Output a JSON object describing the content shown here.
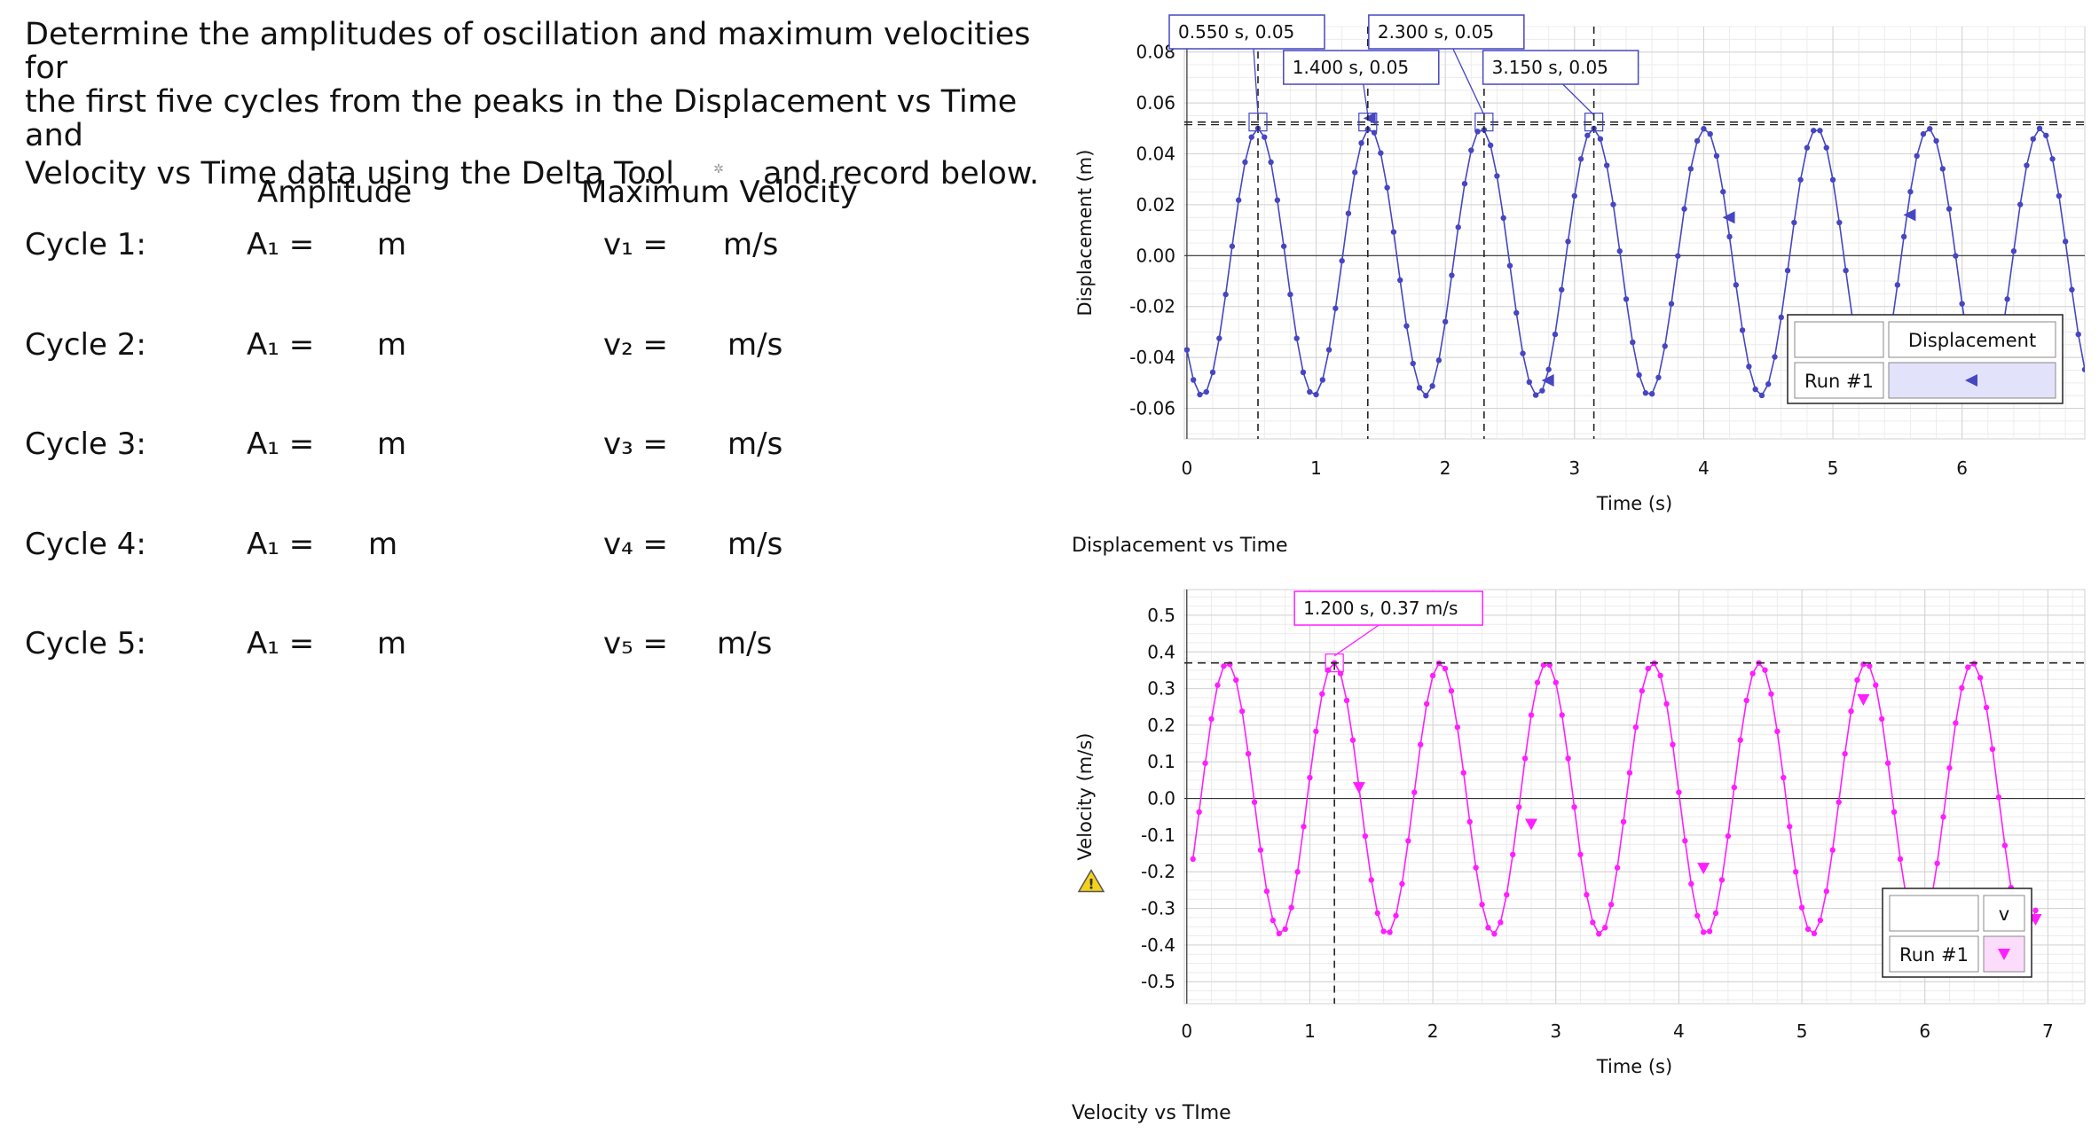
{
  "instructions": {
    "line1": "Determine the amplitudes of oscillation and maximum velocities for",
    "line2": "the first five cycles from the peaks in the Displacement vs Time and",
    "line3a": "Velocity vs Time data using the Delta Tool",
    "line3b": "and record below."
  },
  "table": {
    "amplitude_header": "Amplitude",
    "velocity_header": "Maximum Velocity",
    "rows": [
      {
        "cycle": "Cycle 1:",
        "amp_label": "A₁ =",
        "amp_unit": "m",
        "vel_label": "v₁ =",
        "vel_unit": "m/s"
      },
      {
        "cycle": "Cycle 2:",
        "amp_label": "A₁ =",
        "amp_unit": "m",
        "vel_label": "v₂ =",
        "vel_unit": "m/s"
      },
      {
        "cycle": "Cycle 3:",
        "amp_label": "A₁ =",
        "amp_unit": "m",
        "vel_label": "v₃ =",
        "vel_unit": "m/s"
      },
      {
        "cycle": "Cycle 4:",
        "amp_label": "A₁ =",
        "amp_unit": "m",
        "vel_label": "v₄ =",
        "vel_unit": "m/s"
      },
      {
        "cycle": "Cycle 5:",
        "amp_label": "A₁ =",
        "amp_unit": "m",
        "vel_label": "v₅ =",
        "vel_unit": "m/s"
      }
    ]
  },
  "chart_data": [
    {
      "type": "line",
      "caption": "Displacement vs Time",
      "xlabel": "Time (s)",
      "ylabel": "Displacement (m)",
      "xlim": [
        -0.02,
        6.95
      ],
      "ylim": [
        -0.072,
        0.09
      ],
      "xticks": [
        0,
        1,
        2,
        3,
        4,
        5,
        6
      ],
      "yticks": [
        -0.06,
        -0.04,
        -0.02,
        0.0,
        0.02,
        0.04,
        0.06,
        0.08
      ],
      "ytick_decimals": 2,
      "grid": true,
      "color": "#4646c2",
      "series": [
        {
          "name": "Displacement",
          "run": "Run #1",
          "amplitude": 0.0525,
          "period": 0.865,
          "phase_peak": 0.55,
          "offset": -0.0025,
          "dt": 0.05,
          "t_start": 0.0,
          "t_end": 6.95
        }
      ],
      "cursor_hline": 0.0525,
      "annotations": [
        {
          "label": "0.550 s, 0.05",
          "x": 0.55,
          "y": 0.0525
        },
        {
          "label": "1.400 s, 0.05",
          "x": 1.4,
          "y": 0.0525
        },
        {
          "label": "2.300 s, 0.05",
          "x": 2.3,
          "y": 0.0525
        },
        {
          "label": "3.150 s, 0.05",
          "x": 3.15,
          "y": 0.0525
        }
      ],
      "markers": [
        {
          "x": 1.42,
          "y": 0.054
        },
        {
          "x": 2.8,
          "y": -0.049
        },
        {
          "x": 4.2,
          "y": 0.015
        },
        {
          "x": 5.6,
          "y": 0.016
        }
      ],
      "legend": {
        "position": "bottom-right",
        "name": "Displacement",
        "run": "Run #1"
      }
    },
    {
      "type": "line",
      "caption": "Velocity vs TIme",
      "xlabel": "Time (s)",
      "ylabel": "Velocity (m/s)",
      "xlim": [
        -0.02,
        7.3
      ],
      "ylim": [
        -0.56,
        0.57
      ],
      "xticks": [
        0,
        1,
        2,
        3,
        4,
        5,
        6,
        7
      ],
      "yticks": [
        -0.5,
        -0.4,
        -0.3,
        -0.2,
        -0.1,
        0.0,
        0.1,
        0.2,
        0.3,
        0.4,
        0.5
      ],
      "ytick_decimals": 1,
      "grid": true,
      "color": "#ff1eff",
      "series": [
        {
          "name": "v",
          "run": "Run #1",
          "amplitude": 0.37,
          "period": 0.865,
          "phase_peak": 0.33,
          "offset": 0.0,
          "dt": 0.05,
          "t_start": 0.05,
          "t_end": 6.9
        }
      ],
      "cursor_hline": 0.37,
      "annotations": [
        {
          "label": "1.200 s, 0.37 m/s",
          "x": 1.2,
          "y": 0.37
        }
      ],
      "markers": [
        {
          "x": 1.4,
          "y": 0.03
        },
        {
          "x": 2.8,
          "y": -0.07
        },
        {
          "x": 4.2,
          "y": -0.19
        },
        {
          "x": 5.5,
          "y": 0.27
        },
        {
          "x": 6.9,
          "y": -0.33
        }
      ],
      "legend": {
        "position": "bottom-right",
        "name": "v",
        "run": "Run #1"
      }
    }
  ]
}
